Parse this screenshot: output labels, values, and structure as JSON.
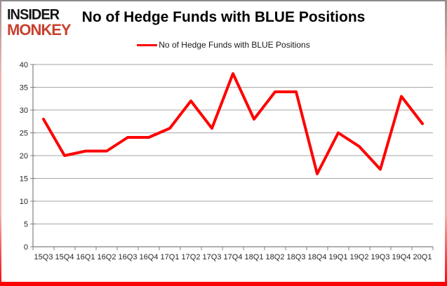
{
  "branding": {
    "logo_line1": "INSIDER",
    "logo_line2": "MONKEY",
    "logo_line1_color": "#141414",
    "logo_line2_color": "#c8402f"
  },
  "header": {
    "title": "No of Hedge Funds with BLUE Positions"
  },
  "legend": {
    "label": "No of Hedge Funds with BLUE Positions",
    "line_color": "#fe0000"
  },
  "chart_data": {
    "type": "line",
    "title": "No of Hedge Funds with BLUE Positions",
    "categories": [
      "15Q3",
      "15Q4",
      "16Q1",
      "16Q2",
      "16Q3",
      "16Q4",
      "17Q1",
      "17Q2",
      "17Q3",
      "17Q4",
      "18Q1",
      "18Q2",
      "18Q3",
      "18Q4",
      "19Q1",
      "19Q2",
      "19Q3",
      "19Q4",
      "20Q1"
    ],
    "series": [
      {
        "name": "No of Hedge Funds with BLUE Positions",
        "color": "#fe0000",
        "values": [
          28,
          20,
          21,
          21,
          24,
          24,
          26,
          32,
          26,
          38,
          28,
          34,
          34,
          16,
          25,
          22,
          17,
          33,
          27
        ]
      }
    ],
    "xlabel": "",
    "ylabel": "",
    "ylim": [
      0,
      40
    ],
    "yticks": [
      0,
      5,
      10,
      15,
      20,
      25,
      30,
      35,
      40
    ],
    "grid": true,
    "legend_position": "top-center"
  },
  "colors": {
    "gridline": "#a6a6a6",
    "axis": "#808080",
    "tick_label": "#262626",
    "frame_top": "#8a8a8a",
    "frame_side_gradient_start": "#9a8f8e",
    "frame_side_gradient_mid": "#f0b2ac",
    "frame_bottom": "#fb0207"
  }
}
